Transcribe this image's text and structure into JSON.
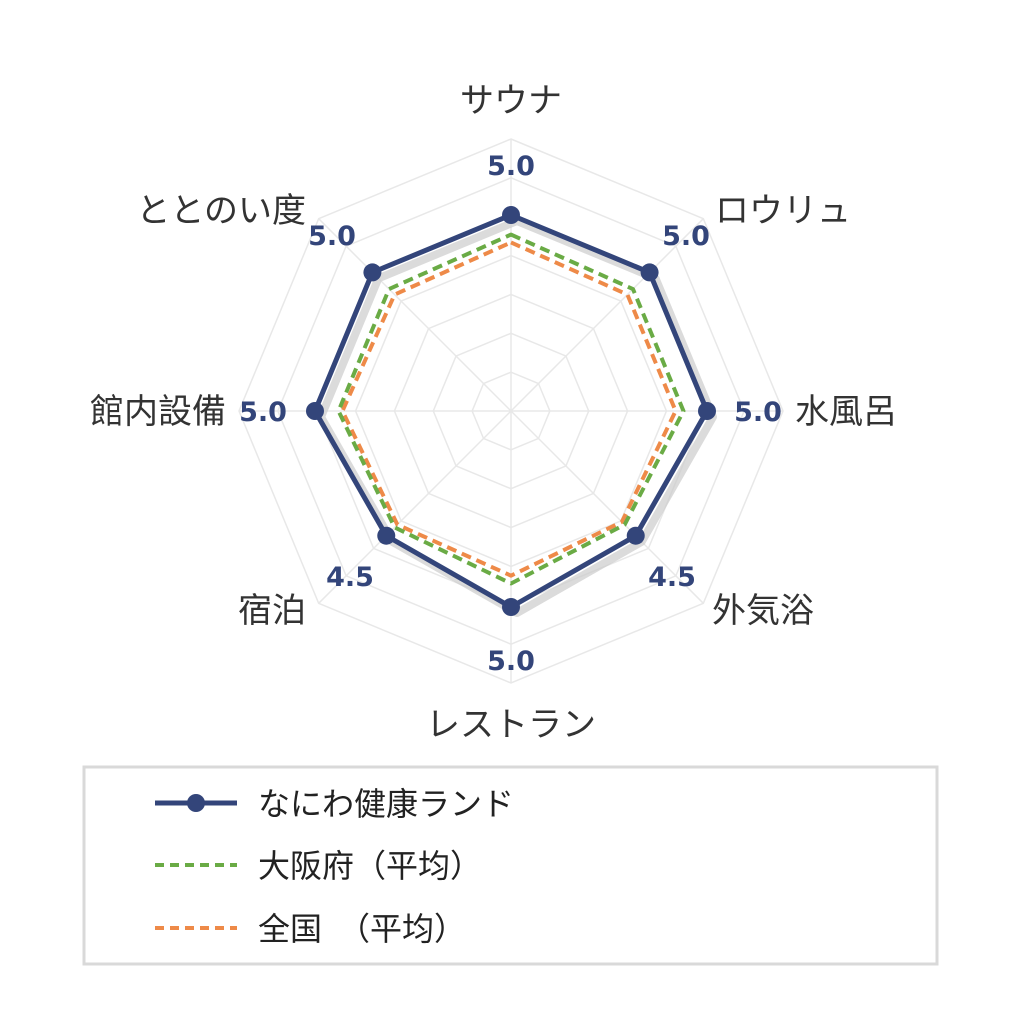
{
  "chart_data": {
    "type": "radar",
    "categories": [
      "サウナ",
      "ロウリュ",
      "水風呂",
      "外気浴",
      "レストラン",
      "宿泊",
      "館内設備",
      "ととのい度"
    ],
    "value_labels": [
      "5.0",
      "5.0",
      "5.0",
      "4.5",
      "5.0",
      "4.5",
      "5.0",
      "5.0"
    ],
    "rmax": 5,
    "grid": true,
    "legend_position": "bottom",
    "series": [
      {
        "name": "なにわ健康ランド",
        "values": [
          5.0,
          5.0,
          5.0,
          4.5,
          5.0,
          4.5,
          5.0,
          5.0
        ],
        "color": "#33457a",
        "style": "solid",
        "marker": "circle"
      },
      {
        "name": "大阪府（平均）",
        "values": [
          4.5,
          4.4,
          4.4,
          4.1,
          4.4,
          4.2,
          4.4,
          4.4
        ],
        "color": "#6aab45",
        "style": "dashed"
      },
      {
        "name": "全国　（平均）",
        "values": [
          4.3,
          4.2,
          4.2,
          4.0,
          4.2,
          4.1,
          4.3,
          4.2
        ],
        "color": "#ee8a48",
        "style": "dashed"
      }
    ]
  }
}
